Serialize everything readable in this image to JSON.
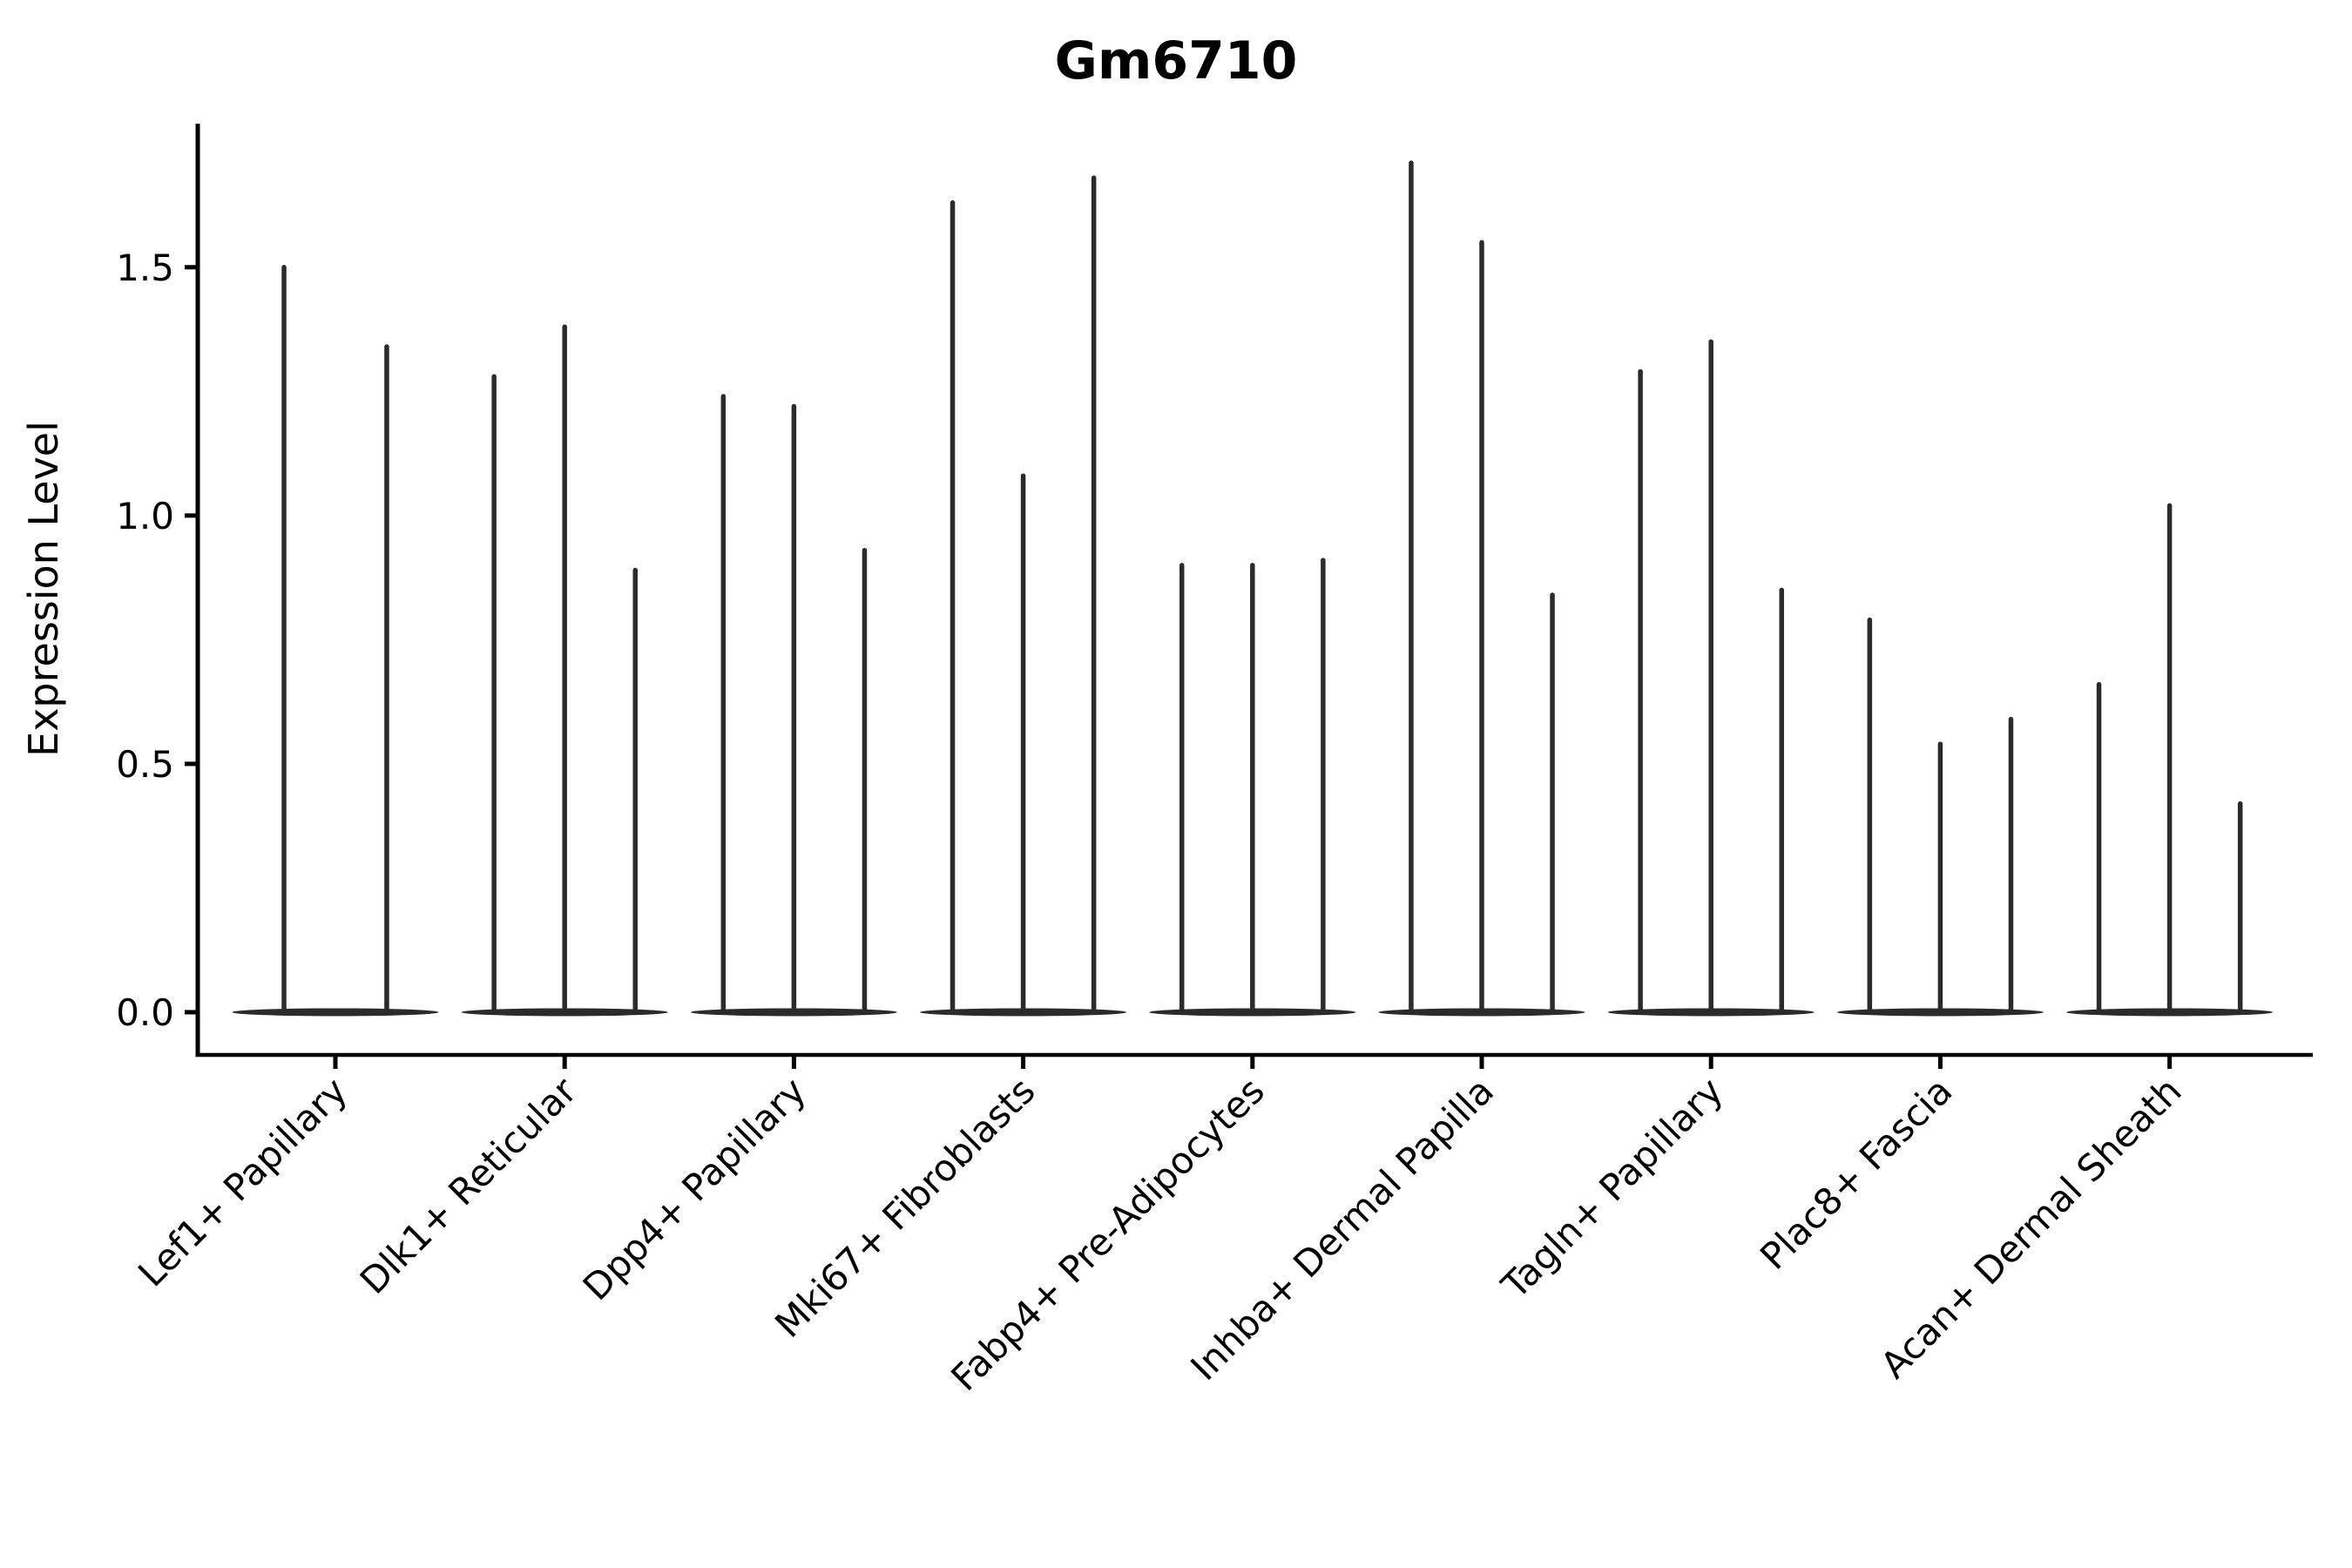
{
  "chart_data": {
    "type": "violin",
    "title": "Gm6710",
    "xlabel": "",
    "ylabel": "Expression Level",
    "yticks": [
      0.0,
      0.5,
      1.0,
      1.5
    ],
    "ytick_labels": [
      "0.0",
      "0.5",
      "1.0",
      "1.5"
    ],
    "ylim": [
      -0.086,
      1.789
    ],
    "grid": false,
    "legend": null,
    "baseline_value": 0,
    "categories": [
      "Lef1+ Papillary",
      "Dlk1+ Reticular",
      "Dpp4+ Papillary",
      "Mki67+ Fibroblasts",
      "Fabp4+ Pre-Adipocytes",
      "Inhba+ Dermal Papilla",
      "Tagln+ Papillary",
      "Plac8+ Fascia",
      "Acan+ Dermal Sheath"
    ],
    "violins": [
      {
        "category": "Lef1+ Papillary",
        "spike_maxima": [
          1.5,
          1.34
        ]
      },
      {
        "category": "Dlk1+ Reticular",
        "spike_maxima": [
          1.28,
          1.38,
          0.89
        ]
      },
      {
        "category": "Dpp4+ Papillary",
        "spike_maxima": [
          1.24,
          1.22,
          0.93
        ]
      },
      {
        "category": "Mki67+ Fibroblasts",
        "spike_maxima": [
          1.63,
          1.08,
          1.68
        ]
      },
      {
        "category": "Fabp4+ Pre-Adipocytes",
        "spike_maxima": [
          0.9,
          0.9,
          0.91
        ]
      },
      {
        "category": "Inhba+ Dermal Papilla",
        "spike_maxima": [
          1.71,
          1.55,
          0.84
        ]
      },
      {
        "category": "Tagln+ Papillary",
        "spike_maxima": [
          1.29,
          1.35,
          0.85
        ]
      },
      {
        "category": "Plac8+ Fascia",
        "spike_maxima": [
          0.79,
          0.54,
          0.59
        ]
      },
      {
        "category": "Acan+ Dermal Sheath",
        "spike_maxima": [
          0.66,
          1.02,
          0.42
        ]
      }
    ],
    "layout_hints": {
      "split_offsets_frac": {
        "2": [
          -0.224,
          0.224
        ],
        "3": [
          -0.308,
          0,
          0.308
        ]
      },
      "base_halfwidth_frac": 0.45,
      "x_label_rotation_deg": 45,
      "legend_position": null
    },
    "colors": {
      "violin": "#2b2b2b",
      "axis": "#000000",
      "text": "#000000",
      "background": "#ffffff"
    }
  }
}
